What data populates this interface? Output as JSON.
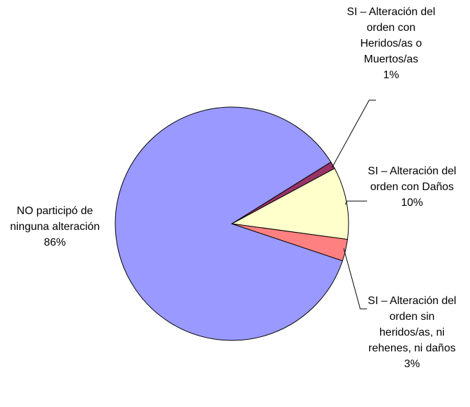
{
  "chart_data": {
    "type": "pie",
    "categories": [
      "NO participó de ninguna alteración",
      "SI – Alteración del orden con Heridos/as o Muertos/as",
      "SI – Alteración del orden con Daños",
      "SI – Alteración del orden sin heridos/as, ni rehenes, ni daños"
    ],
    "values": [
      86,
      1,
      10,
      3
    ],
    "value_labels": [
      "86%",
      "1%",
      "10%",
      "3%"
    ],
    "colors": [
      "#9999ff",
      "#993366",
      "#ffffcc",
      "#ff8080"
    ]
  }
}
